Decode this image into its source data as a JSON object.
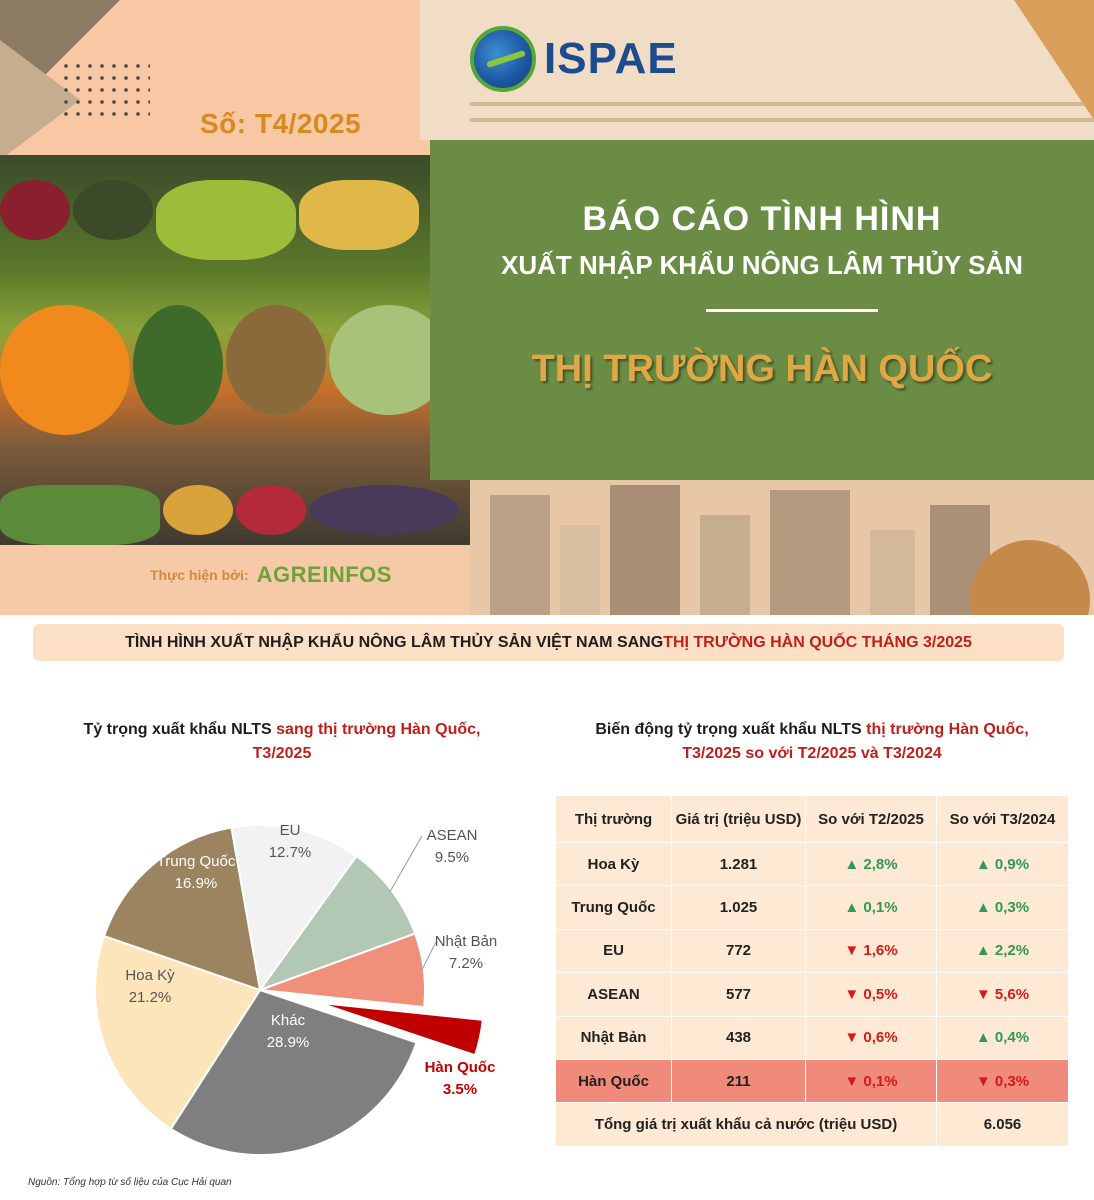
{
  "header": {
    "issue": "Số: T4/2025",
    "logo_text": "ISPAE",
    "title_line1": "BÁO CÁO TÌNH HÌNH",
    "title_line2": "XUẤT NHẬP KHẨU NÔNG LÂM THỦY SẢN",
    "title_line3": "THỊ TRƯỜNG HÀN QUỐC",
    "made_by_label": "Thực hiện bởi:",
    "made_by_logo": "AGREINFOS"
  },
  "section": {
    "part1": "TÌNH HÌNH XUẤT NHẬP KHẨU NÔNG LÂM THỦY SẢN VIỆT NAM SANG ",
    "part2": "THỊ TRƯỜNG HÀN QUỐC THÁNG 3/2025"
  },
  "pie": {
    "title_part1": "Tỷ trọng xuất khẩu NLTS ",
    "title_part2": "sang thị trường Hàn Quốc,",
    "title_part3": "T3/2025"
  },
  "table": {
    "title_part1": "Biến động tỷ trọng xuất khẩu NLTS ",
    "title_part2": "thị trường Hàn Quốc,",
    "title_part3": "T3/2025 so với T2/2025 và T3/2024",
    "headers": [
      "Thị trường",
      "Giá trị (triệu USD)",
      "So với T2/2025",
      "So với T3/2024"
    ],
    "rows": [
      {
        "market": "Hoa Kỳ",
        "value": "1.281",
        "vs_prev": "▲ 2,8%",
        "vs_prev_dir": "up",
        "vs_year": "▲ 0,9%",
        "vs_year_dir": "up"
      },
      {
        "market": "Trung Quốc",
        "value": "1.025",
        "vs_prev": "▲ 0,1%",
        "vs_prev_dir": "up",
        "vs_year": "▲ 0,3%",
        "vs_year_dir": "up"
      },
      {
        "market": "EU",
        "value": "772",
        "vs_prev": "▼ 1,6%",
        "vs_prev_dir": "down",
        "vs_year": "▲ 2,2%",
        "vs_year_dir": "up"
      },
      {
        "market": "ASEAN",
        "value": "577",
        "vs_prev": "▼ 0,5%",
        "vs_prev_dir": "down",
        "vs_year": "▼ 5,6%",
        "vs_year_dir": "down"
      },
      {
        "market": "Nhật Bản",
        "value": "438",
        "vs_prev": "▼ 0,6%",
        "vs_prev_dir": "down",
        "vs_year": "▲ 0,4%",
        "vs_year_dir": "up"
      },
      {
        "market": "Hàn Quốc",
        "value": "211",
        "vs_prev": "▼ 0,1%",
        "vs_prev_dir": "down",
        "vs_year": "▼ 0,3%",
        "vs_year_dir": "down"
      }
    ],
    "total_label": "Tổng giá trị xuất khẩu cả nước (triệu USD)",
    "total_value": "6.056"
  },
  "source_note": "Nguồn: Tổng hợp từ số liệu của Cục Hải quan",
  "chart_data": [
    {
      "type": "pie",
      "slices": [
        {
          "label": "EU",
          "value": 12.7,
          "value_text": "12.7%",
          "color": "#f2f2f2"
        },
        {
          "label": "ASEAN",
          "value": 9.5,
          "value_text": "9.5%",
          "color": "#b3c7b5"
        },
        {
          "label": "Nhật Bản",
          "value": 7.2,
          "value_text": "7.2%",
          "color": "#f1907a"
        },
        {
          "label": "Hàn Quốc",
          "value": 3.5,
          "value_text": "3.5%",
          "color": "#c00000",
          "exploded": true
        },
        {
          "label": "Khác",
          "value": 28.9,
          "value_text": "28.9%",
          "color": "#7f7f7f"
        },
        {
          "label": "Hoa Kỳ",
          "value": 21.2,
          "value_text": "21.2%",
          "color": "#fde5bb"
        },
        {
          "label": "Trung Quốc",
          "value": 16.9,
          "value_text": "16.9%",
          "color": "#9c8460"
        }
      ]
    },
    {
      "type": "table",
      "columns": [
        "Thị trường",
        "Giá trị (triệu USD)",
        "So với T2/2025",
        "So với T3/2024"
      ],
      "rows": [
        [
          "Hoa Kỳ",
          1281,
          "+2.8%",
          "+0.9%"
        ],
        [
          "Trung Quốc",
          1025,
          "+0.1%",
          "+0.3%"
        ],
        [
          "EU",
          772,
          "-1.6%",
          "+2.2%"
        ],
        [
          "ASEAN",
          577,
          "-0.5%",
          "-5.6%"
        ],
        [
          "Nhật Bản",
          438,
          "-0.6%",
          "+0.4%"
        ],
        [
          "Hàn Quốc",
          211,
          "-0.1%",
          "-0.3%"
        ]
      ],
      "total": 6056
    }
  ]
}
